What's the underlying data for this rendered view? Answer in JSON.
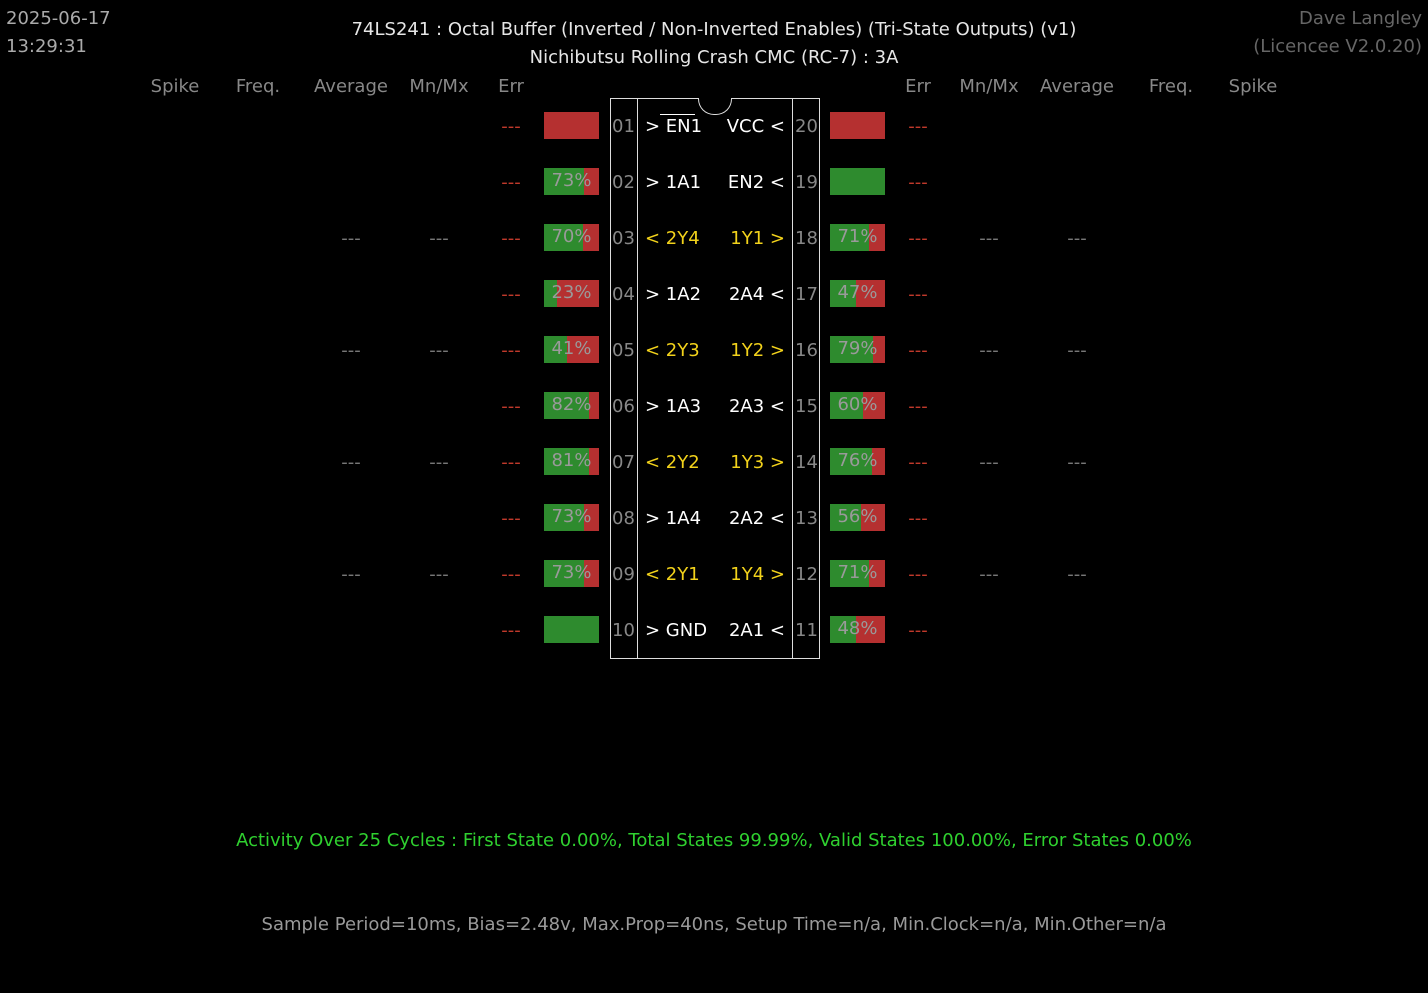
{
  "header": {
    "date": "2025-06-17",
    "time": "13:29:31",
    "author": "Dave Langley",
    "licence": "(Licencee V2.0.20)",
    "title": "74LS241  :  Octal Buffer (Inverted / Non-Inverted Enables) (Tri-State Outputs) (v1)",
    "subtitle": "Nichibutsu Rolling Crash CMC (RC-7) : 3A"
  },
  "columns_left": [
    "Spike",
    "Freq.",
    "Average",
    "Mn/Mx",
    "Err"
  ],
  "columns_right": [
    "Err",
    "Mn/Mx",
    "Average",
    "Freq.",
    "Spike"
  ],
  "left_pins": [
    {
      "num": "01",
      "name": "> EN1",
      "out": false,
      "err": "---",
      "avg": "",
      "mnmx": "",
      "pct": null,
      "fill": 0.0,
      "overline": true
    },
    {
      "num": "02",
      "name": "> 1A1",
      "out": false,
      "err": "---",
      "avg": "",
      "mnmx": "",
      "pct": "73%",
      "fill": 0.73
    },
    {
      "num": "03",
      "name": "< 2Y4",
      "out": true,
      "err": "---",
      "avg": "---",
      "mnmx": "---",
      "pct": "70%",
      "fill": 0.7
    },
    {
      "num": "04",
      "name": "> 1A2",
      "out": false,
      "err": "---",
      "avg": "",
      "mnmx": "",
      "pct": "23%",
      "fill": 0.23
    },
    {
      "num": "05",
      "name": "< 2Y3",
      "out": true,
      "err": "---",
      "avg": "---",
      "mnmx": "---",
      "pct": "41%",
      "fill": 0.41
    },
    {
      "num": "06",
      "name": "> 1A3",
      "out": false,
      "err": "---",
      "avg": "",
      "mnmx": "",
      "pct": "82%",
      "fill": 0.82
    },
    {
      "num": "07",
      "name": "< 2Y2",
      "out": true,
      "err": "---",
      "avg": "---",
      "mnmx": "---",
      "pct": "81%",
      "fill": 0.81
    },
    {
      "num": "08",
      "name": "> 1A4",
      "out": false,
      "err": "---",
      "avg": "",
      "mnmx": "",
      "pct": "73%",
      "fill": 0.73
    },
    {
      "num": "09",
      "name": "< 2Y1",
      "out": true,
      "err": "---",
      "avg": "---",
      "mnmx": "---",
      "pct": "73%",
      "fill": 0.73
    },
    {
      "num": "10",
      "name": "> GND",
      "out": false,
      "err": "---",
      "avg": "",
      "mnmx": "",
      "pct": null,
      "fill": 1.0
    }
  ],
  "right_pins": [
    {
      "num": "20",
      "name": "VCC <",
      "out": false,
      "err": "---",
      "avg": "",
      "mnmx": "",
      "pct": null,
      "fill": 0.0
    },
    {
      "num": "19",
      "name": "EN2 <",
      "out": false,
      "err": "---",
      "avg": "",
      "mnmx": "",
      "pct": null,
      "fill": 1.0
    },
    {
      "num": "18",
      "name": "1Y1 >",
      "out": true,
      "err": "---",
      "avg": "---",
      "mnmx": "---",
      "pct": "71%",
      "fill": 0.71
    },
    {
      "num": "17",
      "name": "2A4 <",
      "out": false,
      "err": "---",
      "avg": "",
      "mnmx": "",
      "pct": "47%",
      "fill": 0.47
    },
    {
      "num": "16",
      "name": "1Y2 >",
      "out": true,
      "err": "---",
      "avg": "---",
      "mnmx": "---",
      "pct": "79%",
      "fill": 0.79
    },
    {
      "num": "15",
      "name": "2A3 <",
      "out": false,
      "err": "---",
      "avg": "",
      "mnmx": "",
      "pct": "60%",
      "fill": 0.6
    },
    {
      "num": "14",
      "name": "1Y3 >",
      "out": true,
      "err": "---",
      "avg": "---",
      "mnmx": "---",
      "pct": "76%",
      "fill": 0.76
    },
    {
      "num": "13",
      "name": "2A2 <",
      "out": false,
      "err": "---",
      "avg": "",
      "mnmx": "",
      "pct": "56%",
      "fill": 0.56
    },
    {
      "num": "12",
      "name": "1Y4 >",
      "out": true,
      "err": "---",
      "avg": "---",
      "mnmx": "---",
      "pct": "71%",
      "fill": 0.71
    },
    {
      "num": "11",
      "name": "2A1 <",
      "out": false,
      "err": "---",
      "avg": "",
      "mnmx": "",
      "pct": "48%",
      "fill": 0.48
    }
  ],
  "colors": {
    "high": "#2e8b2e",
    "low": "#b53030",
    "output_label": "#f2d21b",
    "error": "#c0392b",
    "activity": "#2fd02f"
  },
  "footer": {
    "activity": "Activity Over 25 Cycles  :  First State 0.00%,  Total States 99.99%,  Valid States 100.00%,  Error States 0.00%",
    "sample": "Sample Period=10ms,  Bias=2.48v,  Max.Prop=40ns,  Setup Time=n/a,  Min.Clock=n/a,  Min.Other=n/a"
  }
}
